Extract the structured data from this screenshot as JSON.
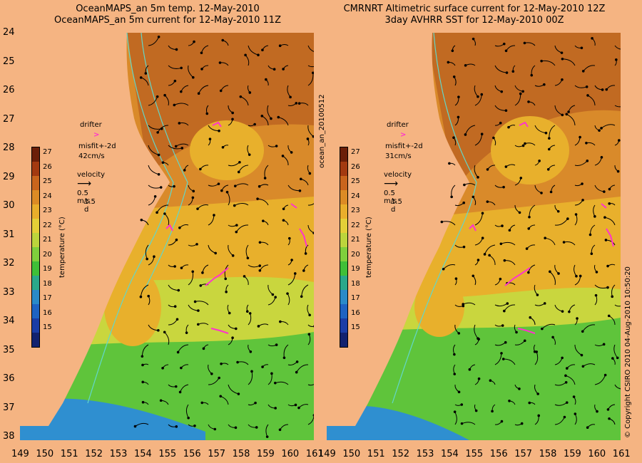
{
  "titles": {
    "left_line1": "OceanMAPS_an 5m temp. 12-May-2010",
    "left_line2": "OceanMAPS_an 5m current for 12-May-2010 11Z",
    "right_line1": "CMRNRT Altimetric surface current for 12-May-2010 12Z",
    "right_line2": "3day AVHRR SST for 12-May-2010 00Z"
  },
  "side_labels": {
    "left": "ocean_an_20100512",
    "right": "© Copyright CSIRO 2010   04-Aug-2010 10:50:20"
  },
  "axes": {
    "longitude_ticks": [
      "149",
      "150",
      "151",
      "152",
      "153",
      "154",
      "155",
      "156",
      "157",
      "158",
      "159",
      "160",
      "161"
    ],
    "latitude_ticks": [
      "24",
      "25",
      "26",
      "27",
      "28",
      "29",
      "30",
      "31",
      "32",
      "33",
      "34",
      "35",
      "36",
      "37",
      "38"
    ]
  },
  "legend_left": {
    "drifter_label": "drifter",
    "misfit_label": "misfit+-2d",
    "misfit_value": "42cm/s",
    "velocity_label": "velocity",
    "velocity_scale": "0.5 m/s",
    "velocity_time": "1.5 d"
  },
  "legend_right": {
    "drifter_label": "drifter",
    "misfit_label": "misfit+-2d",
    "misfit_value": "31cm/s",
    "velocity_label": "velocity",
    "velocity_scale": "0.5 m/s",
    "velocity_time": "1.5 d"
  },
  "colorbar": {
    "label": "temperature (°C)",
    "ticks": [
      "27",
      "26",
      "25",
      "24",
      "23",
      "22",
      "21",
      "20",
      "19",
      "18",
      "17",
      "16",
      "15"
    ],
    "colors": [
      "#6b1f08",
      "#a33a10",
      "#c9651c",
      "#dc8b25",
      "#e9ae2b",
      "#e4cf37",
      "#bcd53c",
      "#7fcf3c",
      "#3fbf38",
      "#2aa88a",
      "#2a8ac8",
      "#1f63c2",
      "#1b3da6",
      "#12226f"
    ]
  },
  "map_colors": {
    "land": "#f5b482",
    "warm": "#d98a2a",
    "hot": "#c16a22",
    "mid": "#e8b02c",
    "cool": "#c9d63e",
    "green": "#5fc43b",
    "cold": "#2f8fd0",
    "contour": "#62d7c9",
    "arrow": "#000000",
    "drifter": "#ff33cc"
  }
}
